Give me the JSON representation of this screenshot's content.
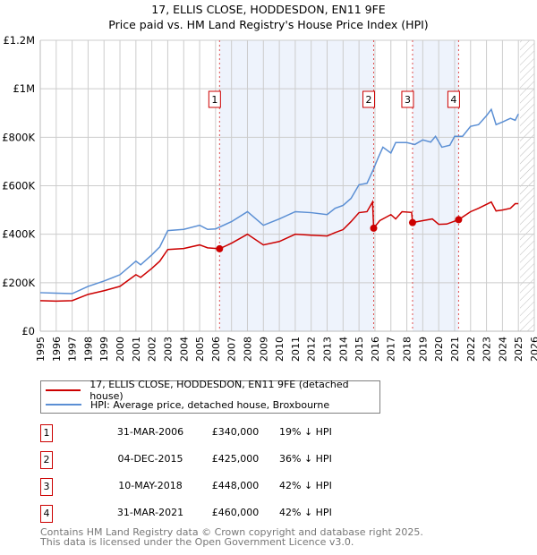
{
  "chart_data": {
    "type": "line",
    "title": "17, ELLIS CLOSE, HODDESDON, EN11 9FE",
    "subtitle": "Price paid vs. HM Land Registry's House Price Index (HPI)",
    "xlim": [
      1995,
      2026
    ],
    "ylim": [
      0,
      1200000
    ],
    "x_ticks": [
      "1995",
      "1996",
      "1997",
      "1998",
      "1999",
      "2000",
      "2001",
      "2002",
      "2003",
      "2004",
      "2005",
      "2006",
      "2007",
      "2008",
      "2009",
      "2010",
      "2011",
      "2012",
      "2013",
      "2014",
      "2015",
      "2016",
      "2017",
      "2018",
      "2019",
      "2020",
      "2021",
      "2022",
      "2023",
      "2024",
      "2025",
      "2026"
    ],
    "y_ticks": [
      {
        "v": 0,
        "l": "£0"
      },
      {
        "v": 200000,
        "l": "£200K"
      },
      {
        "v": 400000,
        "l": "£400K"
      },
      {
        "v": 600000,
        "l": "£600K"
      },
      {
        "v": 800000,
        "l": "£800K"
      },
      {
        "v": 1000000,
        "l": "£1M"
      },
      {
        "v": 1200000,
        "l": "£1.2M"
      }
    ],
    "grid": true,
    "shaded_periods": [
      [
        2006.25,
        2015.92
      ],
      [
        2018.36,
        2021.25
      ]
    ],
    "forecast_hatch_from": 2025.1,
    "series": [
      {
        "name": "17, ELLIS CLOSE, HODDESDON, EN11 9FE (detached house)",
        "color": "#cc0000",
        "x": [
          1995,
          1996,
          1997,
          1998,
          1999,
          2000,
          2001,
          2001.3,
          2002,
          2002.5,
          2003,
          2004,
          2005,
          2005.5,
          2006.25,
          2007,
          2008,
          2009,
          2010,
          2011,
          2012,
          2013,
          2013.5,
          2014,
          2014.5,
          2015,
          2015.5,
          2015.85,
          2015.92,
          2016.3,
          2017,
          2017.3,
          2017.7,
          2018.3,
          2018.36,
          2019,
          2019.6,
          2020,
          2020.5,
          2021.25,
          2022,
          2022.5,
          2023.3,
          2023.6,
          2024,
          2024.5,
          2024.8,
          2025
        ],
        "y": [
          126000,
          124000,
          126000,
          152000,
          167000,
          185000,
          233000,
          222000,
          259000,
          289000,
          337000,
          341000,
          356000,
          344000,
          340000,
          363000,
          400000,
          356000,
          370000,
          400000,
          396000,
          393000,
          407000,
          419000,
          452000,
          489000,
          493000,
          533000,
          425000,
          456000,
          481000,
          463000,
          493000,
          490000,
          448000,
          456000,
          463000,
          441000,
          442000,
          460000,
          493000,
          507000,
          533000,
          496000,
          500000,
          507000,
          526000,
          526000
        ]
      },
      {
        "name": "HPI: Average price, detached house, Broxbourne",
        "color": "#5b8fd4",
        "x": [
          1995,
          1996,
          1997,
          1998,
          1999,
          2000,
          2001,
          2001.3,
          2002,
          2002.5,
          2003,
          2004,
          2005,
          2005.5,
          2006,
          2007,
          2008,
          2009,
          2010,
          2011,
          2012,
          2013,
          2013.5,
          2014,
          2014.5,
          2015,
          2015.5,
          2015.9,
          2016.2,
          2016.5,
          2017,
          2017.3,
          2018,
          2018.5,
          2019,
          2019.5,
          2019.8,
          2020.2,
          2020.7,
          2021,
          2021.5,
          2022,
          2022.5,
          2023,
          2023.3,
          2023.6,
          2024,
          2024.5,
          2024.8,
          2025
        ],
        "y": [
          159000,
          157000,
          155000,
          185000,
          207000,
          233000,
          289000,
          274000,
          315000,
          348000,
          415000,
          420000,
          437000,
          420000,
          422000,
          452000,
          493000,
          437000,
          463000,
          493000,
          489000,
          481000,
          507000,
          519000,
          548000,
          604000,
          610000,
          667000,
          715000,
          759000,
          735000,
          778000,
          778000,
          770000,
          789000,
          780000,
          804000,
          759000,
          767000,
          804000,
          804000,
          845000,
          852000,
          889000,
          915000,
          852000,
          863000,
          878000,
          870000,
          896000
        ]
      }
    ],
    "sales": [
      {
        "label": "1",
        "x": 2006.25,
        "price": 340000,
        "date": "31-MAR-2006",
        "price_text": "£340,000",
        "hpi_text": "19% ↓ HPI"
      },
      {
        "label": "2",
        "x": 2015.92,
        "price": 425000,
        "date": "04-DEC-2015",
        "price_text": "£425,000",
        "hpi_text": "36% ↓ HPI"
      },
      {
        "label": "3",
        "x": 2018.36,
        "price": 448000,
        "date": "10-MAY-2018",
        "price_text": "£448,000",
        "hpi_text": "42% ↓ HPI"
      },
      {
        "label": "4",
        "x": 2021.25,
        "price": 460000,
        "date": "31-MAR-2021",
        "price_text": "£460,000",
        "hpi_text": "42% ↓ HPI"
      }
    ],
    "legend": {
      "placement": "below",
      "entries": [
        "17, ELLIS CLOSE, HODDESDON, EN11 9FE (detached house)",
        "HPI: Average price, detached house, Broxbourne"
      ]
    }
  },
  "footer": {
    "line1": "Contains HM Land Registry data © Crown copyright and database right 2025.",
    "line2": "This data is licensed under the Open Government Licence v3.0."
  }
}
